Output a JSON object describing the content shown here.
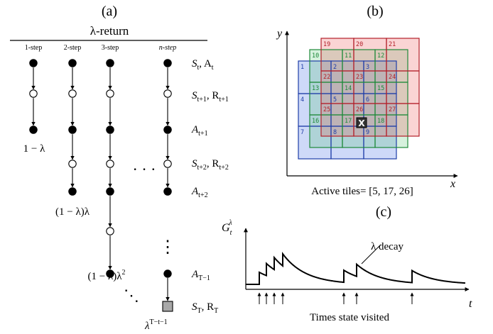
{
  "panel_a": {
    "label": "(a)",
    "title": "λ-return",
    "columns": [
      "1-step",
      "2-step",
      "3-step",
      "n-step"
    ],
    "state_labels": [
      {
        "base": "S",
        "sub": "t",
        "rest": ", A",
        "rest_sub": "t"
      },
      {
        "base": "S",
        "sub": "t+1",
        "rest": ", R",
        "rest_sub": "t+1"
      },
      {
        "base": "A",
        "sub": "t+1",
        "rest": "",
        "rest_sub": ""
      },
      {
        "base": "S",
        "sub": "t+2",
        "rest": ", R",
        "rest_sub": "t+2"
      },
      {
        "base": "A",
        "sub": "t+2",
        "rest": "",
        "rest_sub": ""
      },
      {
        "base": "A",
        "sub": "T−1",
        "rest": "",
        "rest_sub": ""
      },
      {
        "base": "S",
        "sub": "T",
        "rest": ", R",
        "rest_sub": "T"
      }
    ],
    "weights": {
      "w1": "1 − λ",
      "w2": "(1 − λ)λ",
      "w3_base": "(1 − λ)λ",
      "w3_sup": "2",
      "wn_base": "λ",
      "wn_sup": "T−t−1"
    },
    "ellipsis_h": "· · ·",
    "ellipsis_v": "⋮",
    "ellipsis_d": "⋱"
  },
  "panel_b": {
    "label": "(b)",
    "axis_x": "x",
    "axis_y": "y",
    "caption": "Active tiles= [5, 17, 26]",
    "marker": "X",
    "colors": {
      "blue": "#1f3ea8",
      "green": "#1e8a3a",
      "red": "#b3202a"
    },
    "blue_tiles": [
      "1",
      "2",
      "3",
      "4",
      "5",
      "6",
      "7",
      "8",
      "9"
    ],
    "green_tiles": [
      "10",
      "11",
      "12",
      "13",
      "14",
      "15",
      "16",
      "17",
      "18"
    ],
    "red_tiles": [
      "19",
      "20",
      "21",
      "22",
      "23",
      "24",
      "25",
      "26",
      "27"
    ]
  },
  "panel_c": {
    "label": "(c)",
    "ylabel_base": "G",
    "ylabel_sub": "t",
    "ylabel_sup": "λ",
    "xlabel": "t",
    "annotation": "λ decay",
    "caption": "Times state visited"
  }
}
